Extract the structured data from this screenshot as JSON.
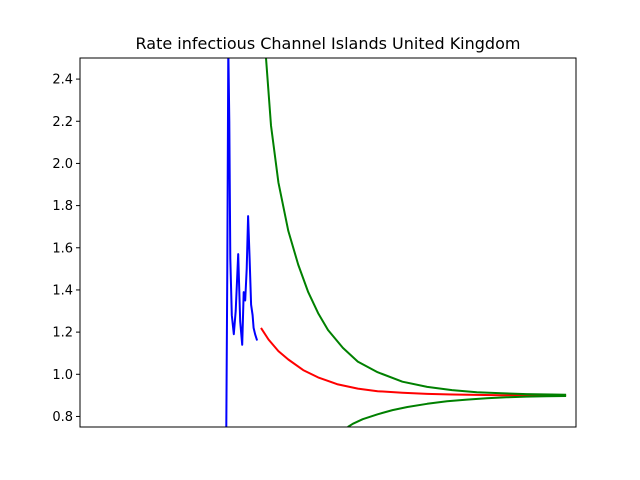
{
  "chart_data": {
    "type": "line",
    "title": "Rate infectious Channel Islands United Kingdom",
    "xlabel": "",
    "ylabel": "",
    "xlim": [
      0,
      100
    ],
    "ylim": [
      0.75,
      2.5
    ],
    "yticks": [
      0.8,
      1.0,
      1.2,
      1.4,
      1.6,
      1.8,
      2.0,
      2.2,
      2.4
    ],
    "ytick_labels": [
      "0.8",
      "1.0",
      "1.2",
      "1.4",
      "1.6",
      "1.8",
      "2.0",
      "2.2",
      "2.4"
    ],
    "grid": false,
    "legend": "none",
    "series": [
      {
        "color": "#0000ff",
        "x": [
          29.5,
          29.7,
          29.9,
          30.1,
          30.3,
          30.6,
          31.0,
          31.4,
          31.9,
          32.3,
          32.7,
          33.0,
          33.3,
          33.6,
          33.9,
          34.2,
          34.5,
          34.8,
          35.0,
          35.3,
          35.7
        ],
        "y": [
          0.75,
          1.5,
          2.55,
          2.2,
          1.55,
          1.28,
          1.19,
          1.3,
          1.57,
          1.25,
          1.14,
          1.39,
          1.35,
          1.5,
          1.75,
          1.55,
          1.33,
          1.28,
          1.22,
          1.19,
          1.16
        ]
      },
      {
        "color": "#ff0000",
        "x": [
          36.5,
          38,
          40,
          42,
          45,
          48,
          52,
          56,
          60,
          65,
          70,
          75,
          80,
          85,
          90,
          95,
          98
        ],
        "y": [
          1.22,
          1.165,
          1.11,
          1.07,
          1.02,
          0.985,
          0.952,
          0.932,
          0.92,
          0.912,
          0.907,
          0.904,
          0.902,
          0.901,
          0.9,
          0.9,
          0.9
        ]
      },
      {
        "color": "#008000",
        "x": [
          37.5,
          38.5,
          40,
          42,
          44,
          46,
          48,
          50,
          53,
          56,
          60,
          65,
          70,
          75,
          80,
          85,
          90,
          95,
          98
        ],
        "y": [
          2.5,
          2.18,
          1.91,
          1.68,
          1.52,
          1.39,
          1.29,
          1.21,
          1.125,
          1.06,
          1.01,
          0.965,
          0.94,
          0.925,
          0.915,
          0.91,
          0.906,
          0.904,
          0.903
        ]
      },
      {
        "color": "#008000",
        "x": [
          54,
          55,
          57,
          60,
          63,
          66,
          70,
          74,
          78,
          82,
          86,
          90,
          94,
          98
        ],
        "y": [
          0.75,
          0.765,
          0.787,
          0.81,
          0.83,
          0.845,
          0.86,
          0.872,
          0.88,
          0.886,
          0.891,
          0.894,
          0.896,
          0.897
        ]
      }
    ]
  }
}
